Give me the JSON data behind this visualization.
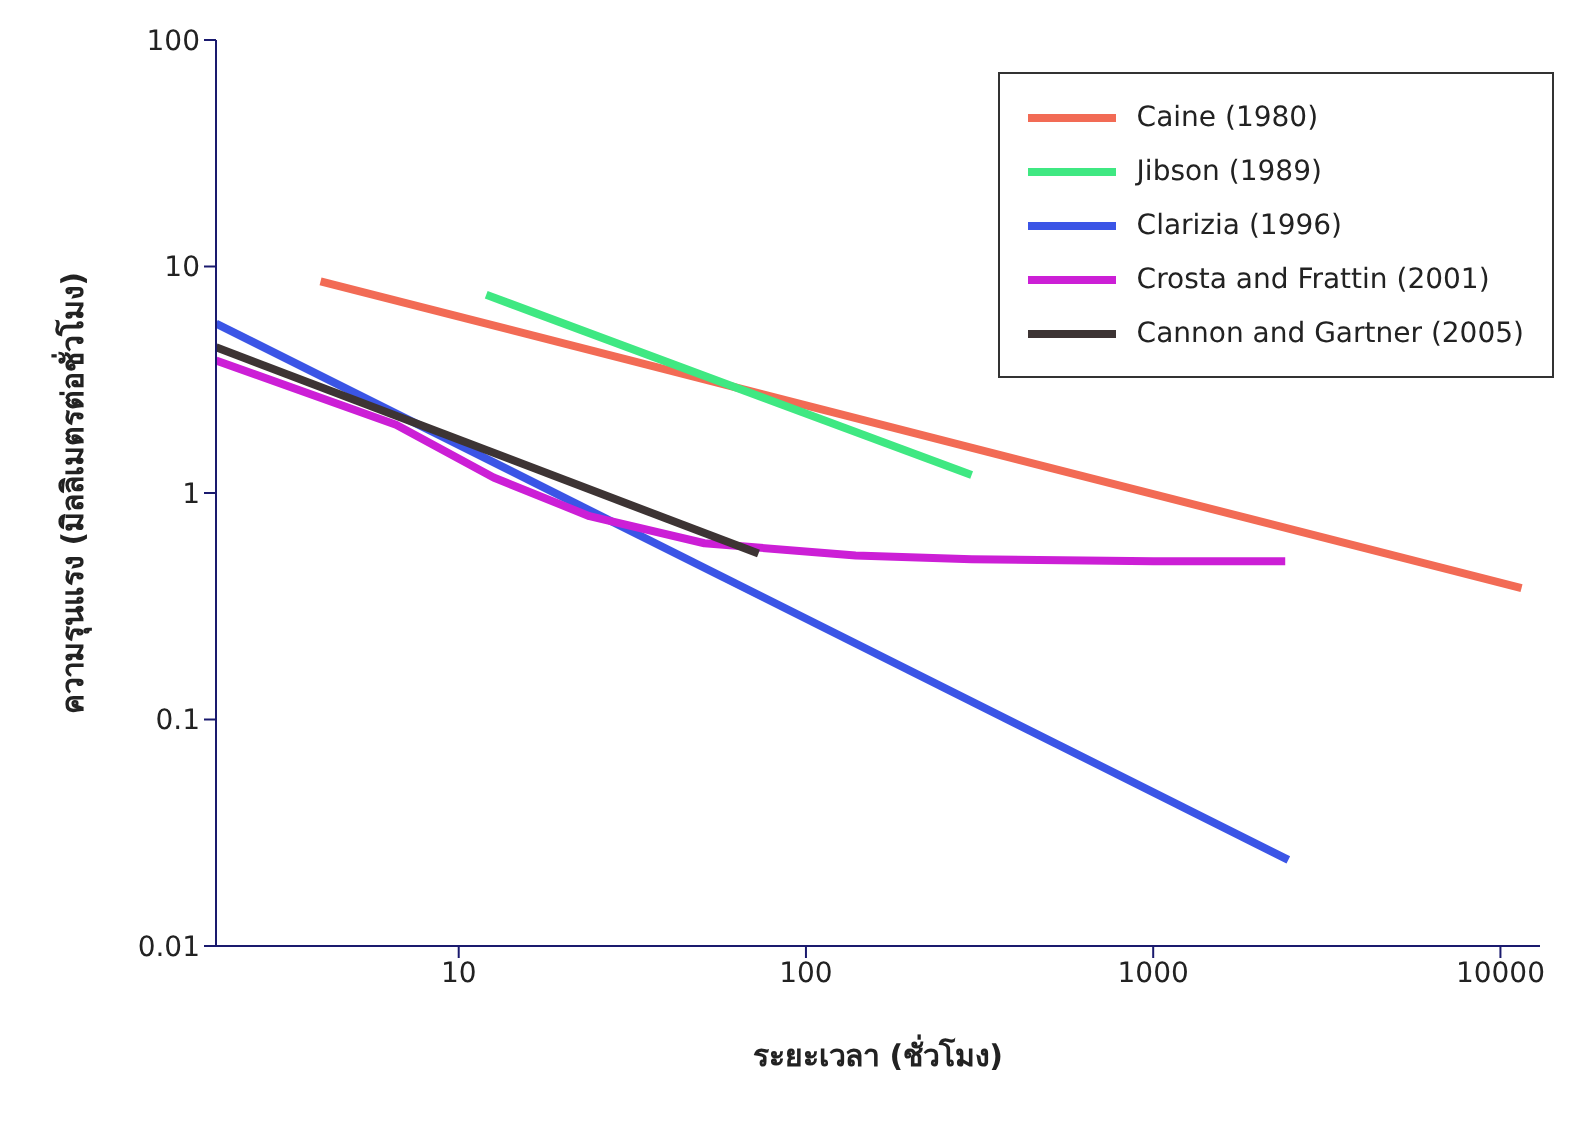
{
  "chart_data": {
    "type": "line",
    "xlabel": "ระยะเวลา (ชั่วโมง)",
    "ylabel": "ความรุนแรง (มิลลิเมตรต่อชั่วโมง)",
    "log": "xy",
    "xlim": [
      2,
      13000
    ],
    "xticks": [
      10,
      100,
      1000,
      10000
    ],
    "ylim": [
      0.01,
      100
    ],
    "yticks": [
      0.01,
      0.1,
      1,
      10,
      100
    ],
    "grid": false,
    "legend": "top right",
    "marker": "none",
    "line_style": "solid",
    "series": [
      {
        "name": "Caine (1980)",
        "color": "#f26b55",
        "x": [
          4,
          11500
        ],
        "values": [
          8.6,
          0.38
        ]
      },
      {
        "name": "Jibson (1989)",
        "color": "#3fe882",
        "x": [
          12,
          300
        ],
        "values": [
          7.5,
          1.2
        ]
      },
      {
        "name": "Clarizia (1996)",
        "color": "#3b55e6",
        "x": [
          2,
          2450
        ],
        "values": [
          5.6,
          0.024
        ]
      },
      {
        "name": "Crosta and Frattin (2001)",
        "color": "#cc1fd6",
        "x": [
          2,
          6.6,
          12.6,
          23.8,
          51,
          139,
          300,
          1000,
          2400
        ],
        "values": [
          3.85,
          2.0,
          1.17,
          0.79,
          0.6,
          0.53,
          0.51,
          0.5,
          0.5
        ]
      },
      {
        "name": "Cannon and Gartner (2005)",
        "color": "#3d3434",
        "x": [
          2,
          73
        ],
        "values": [
          4.4,
          0.54
        ]
      }
    ]
  }
}
